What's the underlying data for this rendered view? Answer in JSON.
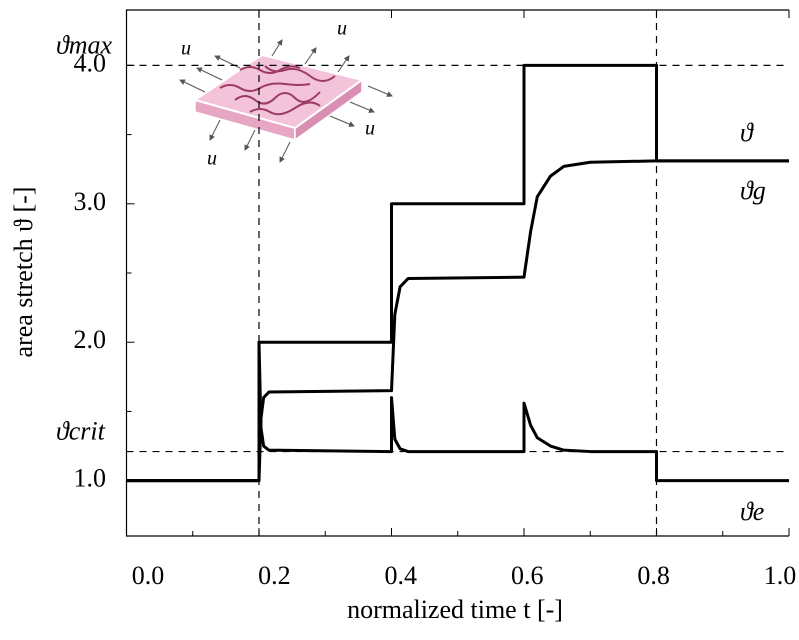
{
  "chart_data": {
    "type": "line",
    "xlabel": "normalized time t [-]",
    "ylabel": "area stretch ϑ [-]",
    "xlim": [
      0,
      1
    ],
    "ylim": [
      0.6,
      4.4
    ],
    "xticks": [
      {
        "value": 0,
        "label": "0.0"
      },
      {
        "value": 0.2,
        "label": "0.2"
      },
      {
        "value": 0.4,
        "label": "0.4"
      },
      {
        "value": 0.6,
        "label": "0.6"
      },
      {
        "value": 0.8,
        "label": "0.8"
      },
      {
        "value": 1,
        "label": "1.0"
      }
    ],
    "xminor": [
      0.1,
      0.3,
      0.5,
      0.7,
      0.9
    ],
    "yticks": [
      {
        "value": 1,
        "label": "1.0"
      },
      {
        "value": 2,
        "label": "2.0"
      },
      {
        "value": 3,
        "label": "3.0"
      },
      {
        "value": 4,
        "label": "4.0"
      }
    ],
    "yminor": [
      1.5,
      2.5,
      3.5
    ],
    "hlines": [
      {
        "value": 4.0,
        "label": "ϑmax"
      },
      {
        "value": 1.21,
        "label": "ϑcrit"
      }
    ],
    "vlines": [
      0.2,
      0.8
    ],
    "inset_labels": [
      "u",
      "u",
      "u",
      "u"
    ],
    "series": [
      {
        "name": "ϑ",
        "color": "#000000",
        "x": [
          0,
          0.2,
          0.2,
          0.4,
          0.4,
          0.6,
          0.6,
          0.8,
          0.8,
          1.0
        ],
        "values": [
          1,
          1,
          2,
          2,
          3,
          3,
          4,
          4,
          3.31,
          3.31
        ]
      },
      {
        "name": "ϑg",
        "color": "#000000",
        "x": [
          0,
          0.2,
          0.203,
          0.207,
          0.215,
          0.4,
          0.405,
          0.413,
          0.425,
          0.6,
          0.61,
          0.62,
          0.64,
          0.66,
          0.7,
          0.8,
          1.0
        ],
        "values": [
          1,
          1,
          1.45,
          1.6,
          1.64,
          1.65,
          2.2,
          2.4,
          2.46,
          2.47,
          2.8,
          3.05,
          3.2,
          3.27,
          3.3,
          3.31,
          3.31
        ]
      },
      {
        "name": "ϑe",
        "color": "#000000",
        "x": [
          0,
          0.2,
          0.2,
          0.203,
          0.207,
          0.215,
          0.4,
          0.4,
          0.405,
          0.413,
          0.425,
          0.6,
          0.6,
          0.61,
          0.62,
          0.64,
          0.66,
          0.7,
          0.8,
          0.8,
          1.0
        ],
        "values": [
          1,
          1,
          2,
          1.38,
          1.25,
          1.22,
          1.21,
          1.6,
          1.3,
          1.23,
          1.21,
          1.21,
          1.56,
          1.4,
          1.31,
          1.25,
          1.22,
          1.21,
          1.21,
          1,
          1
        ]
      }
    ]
  }
}
